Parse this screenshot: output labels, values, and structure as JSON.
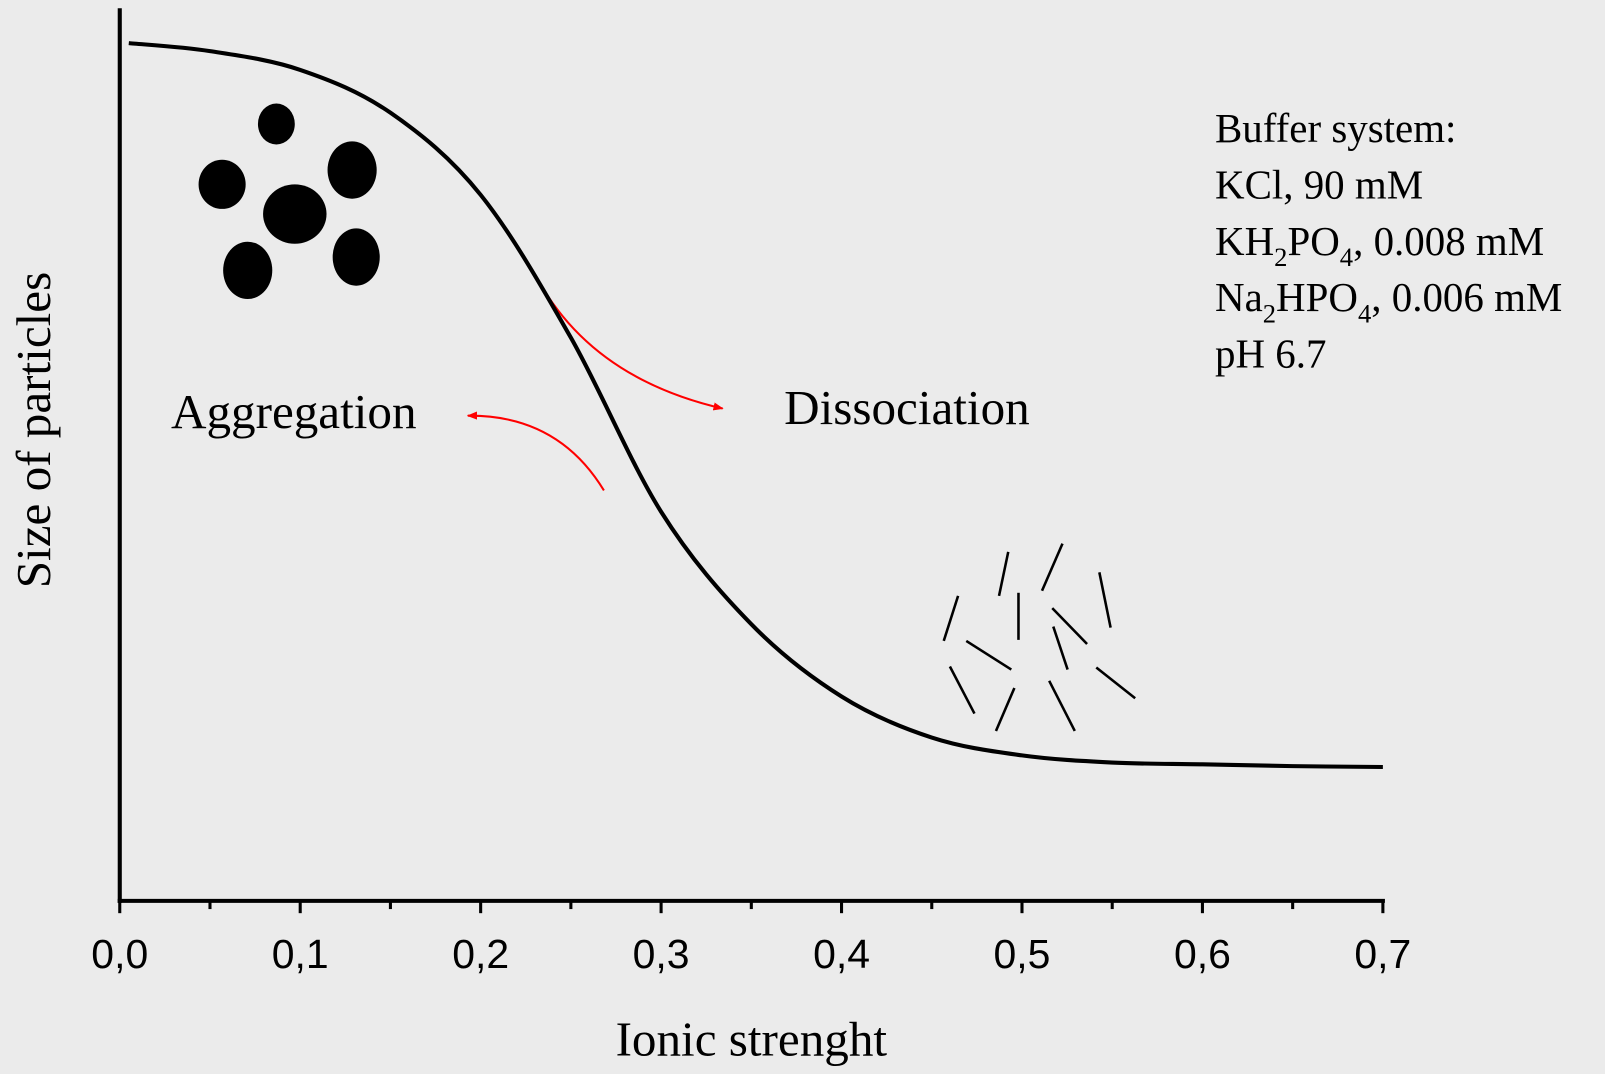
{
  "chart_data": {
    "type": "line",
    "x_label": "Ionic strenght",
    "y_label": "Size of  particles",
    "x": [
      0.005,
      0.05,
      0.1,
      0.15,
      0.2,
      0.25,
      0.3,
      0.35,
      0.4,
      0.45,
      0.5,
      0.55,
      0.6,
      0.65,
      0.7
    ],
    "values": [
      0.961,
      0.952,
      0.931,
      0.883,
      0.791,
      0.631,
      0.436,
      0.31,
      0.229,
      0.183,
      0.163,
      0.155,
      0.153,
      0.151,
      0.15
    ],
    "color": "#000000",
    "xlim": [
      0,
      0.7
    ],
    "ylim": [
      0,
      1
    ],
    "xticks": [
      {
        "value": 0,
        "label": "0,0"
      },
      {
        "value": 0.1,
        "label": "0,1"
      },
      {
        "value": 0.2,
        "label": "0,2"
      },
      {
        "value": 0.3,
        "label": "0,3"
      },
      {
        "value": 0.4,
        "label": "0,4"
      },
      {
        "value": 0.5,
        "label": "0,5"
      },
      {
        "value": 0.6,
        "label": "0,6"
      },
      {
        "value": 0.7,
        "label": "0,7"
      }
    ],
    "minor_xticks": [
      0.05,
      0.15,
      0.25,
      0.35,
      0.45,
      0.55,
      0.65
    ],
    "annotations": [
      "Aggregation",
      "Dissociation"
    ],
    "buffer_lines": [
      [
        "Buffer system:"
      ],
      [
        "KCl, 90 mM"
      ],
      [
        "KH",
        "2",
        "PO",
        "4",
        ", 0.008 mM"
      ],
      [
        "Na",
        "2",
        "HPO",
        "4",
        ", 0.006 mM"
      ],
      [
        "pH 6.7"
      ]
    ]
  }
}
